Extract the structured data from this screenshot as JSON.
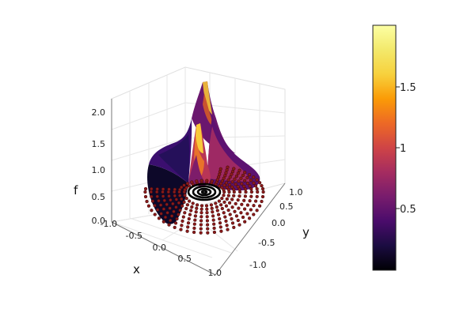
{
  "chart_data": {
    "type": "surface3d",
    "title": "",
    "xlabel": "x",
    "ylabel": "y",
    "zlabel": "f",
    "xlim": [
      -1.0,
      1.0
    ],
    "ylim": [
      -1.0,
      1.0
    ],
    "zlim": [
      0.0,
      2.0
    ],
    "x_ticks": [
      "-1.0",
      "-0.5",
      "0.0",
      "0.5",
      "1.0"
    ],
    "y_ticks": [
      "-1.0",
      "-0.5",
      "0.0",
      "0.5",
      "1.0"
    ],
    "z_ticks": [
      "0.0",
      "0.5",
      "1.0",
      "1.5",
      "2.0"
    ],
    "colorbar": {
      "colormap": "inferno",
      "range": [
        0.0,
        2.0
      ],
      "ticks": [
        "0.5",
        "1",
        "1.5"
      ]
    },
    "grid": true,
    "scatter_color": "#8b1a1a",
    "center_ring_color": "#000000"
  }
}
